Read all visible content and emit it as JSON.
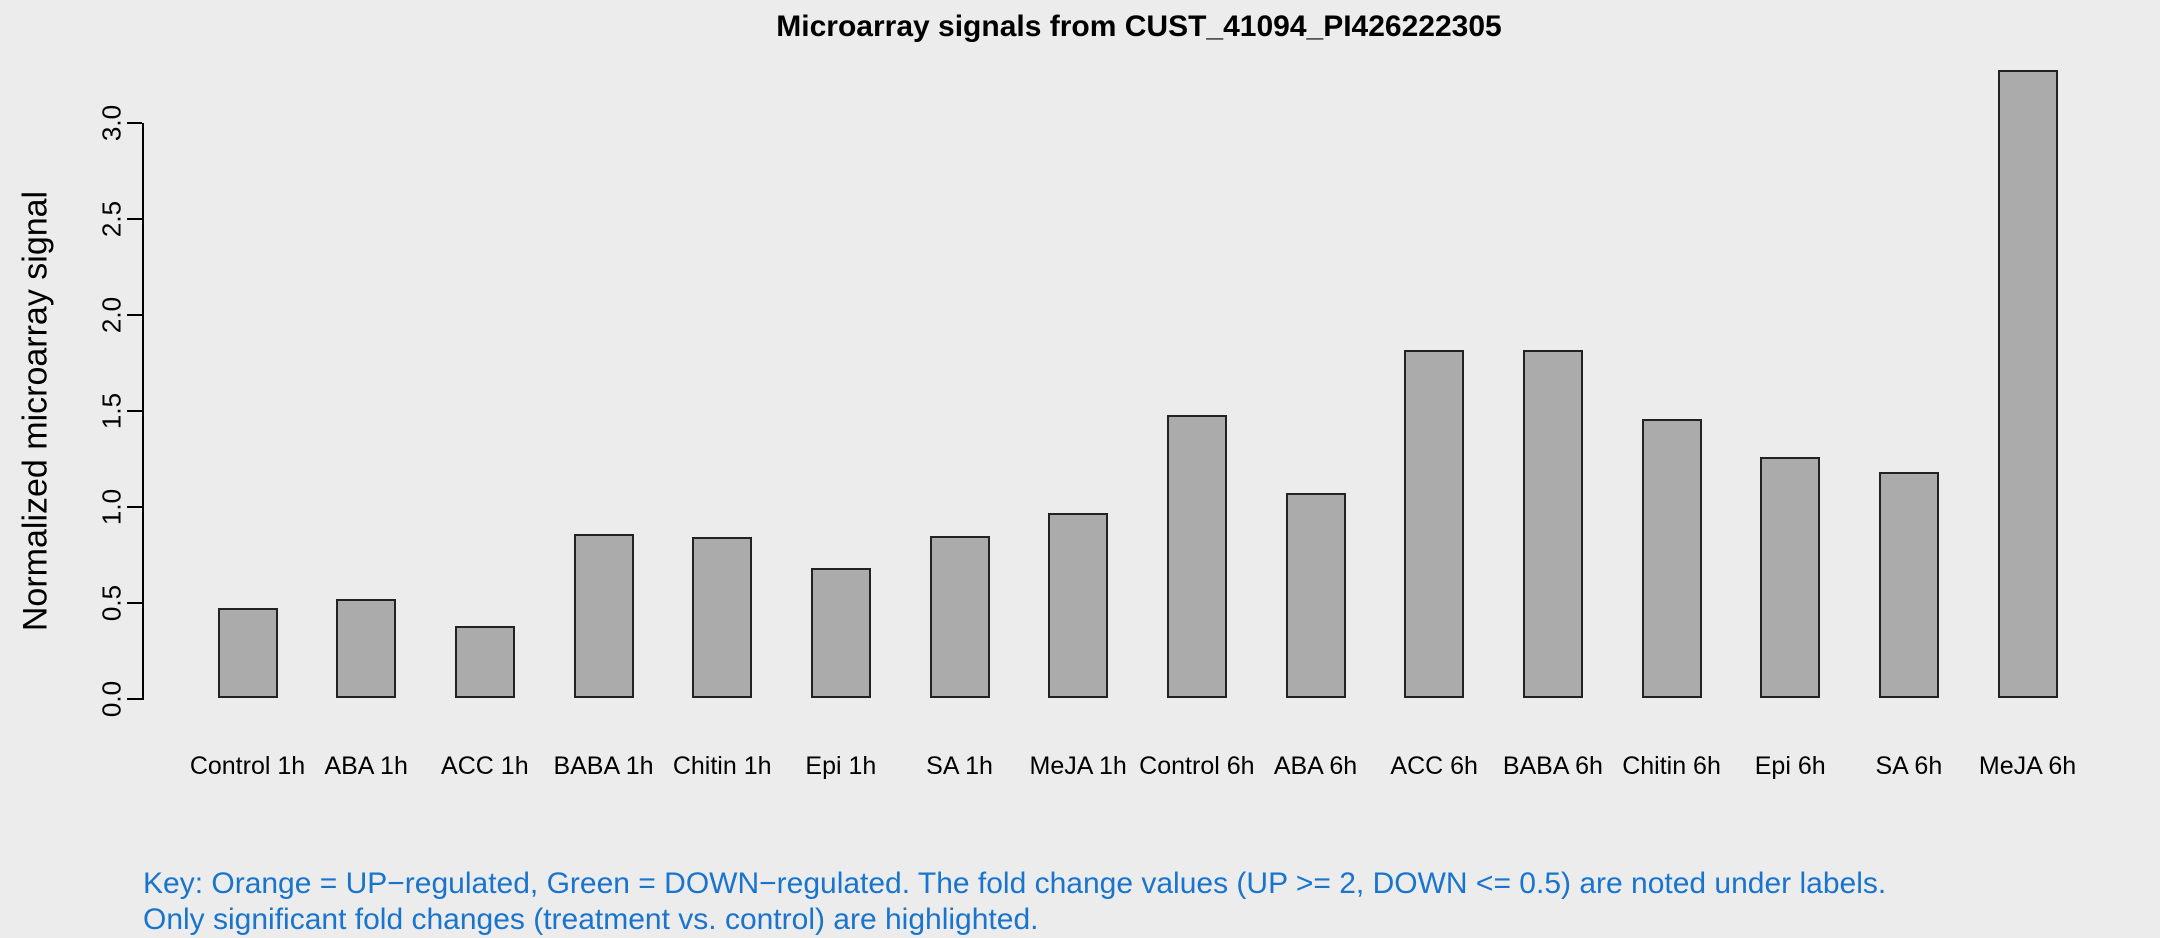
{
  "chart_data": {
    "type": "bar",
    "title": "Microarray signals from CUST_41094_PI426222305",
    "ylabel": "Normalized microarray signal",
    "xlabel": "",
    "categories": [
      "Control 1h",
      "ABA 1h",
      "ACC 1h",
      "BABA 1h",
      "Chitin 1h",
      "Epi 1h",
      "SA 1h",
      "MeJA 1h",
      "Control 6h",
      "ABA 6h",
      "ACC 6h",
      "BABA 6h",
      "Chitin 6h",
      "Epi 6h",
      "SA 6h",
      "MeJA 6h"
    ],
    "values": [
      0.47,
      0.52,
      0.38,
      0.86,
      0.84,
      0.68,
      0.85,
      0.97,
      1.48,
      1.07,
      1.82,
      1.82,
      1.46,
      1.26,
      1.18,
      3.28
    ],
    "ytick_labels": [
      "0.0",
      "0.5",
      "1.0",
      "1.5",
      "2.0",
      "2.5",
      "3.0"
    ],
    "ytick_values": [
      0.0,
      0.5,
      1.0,
      1.5,
      2.0,
      2.5,
      3.0
    ],
    "ylim": [
      0.0,
      3.3
    ],
    "grid": false,
    "legend": "none",
    "colors": {
      "background": "#ECECEC",
      "bar_fill": "#ABABAB",
      "bar_border": "#222222",
      "axis": "#000000",
      "text": "#000000",
      "note_text": "#1874CD"
    }
  },
  "footnote": {
    "line1": "Key: Orange = UP−regulated, Green = DOWN−regulated. The fold change values (UP >= 2, DOWN <= 0.5) are noted under labels.",
    "line2": "Only significant fold changes (treatment vs. control) are highlighted."
  }
}
